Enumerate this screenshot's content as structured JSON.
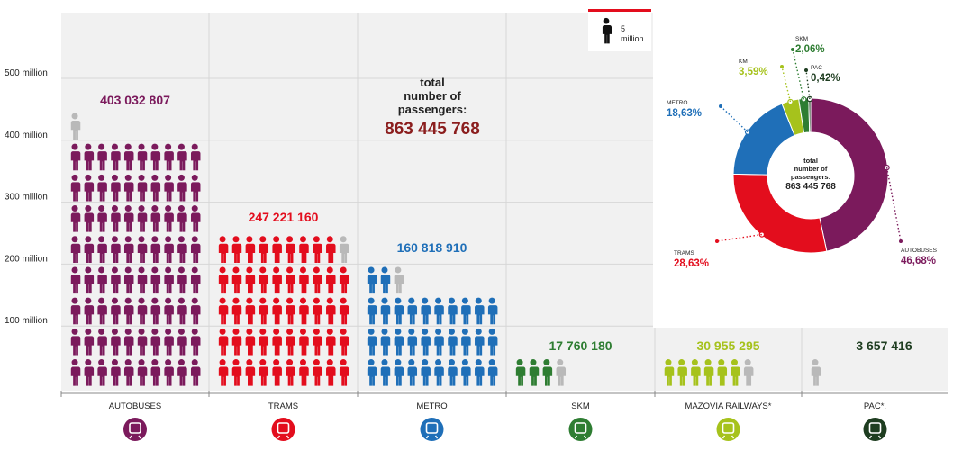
{
  "legend": {
    "unit_value": "5",
    "unit_label": "million"
  },
  "center_total": {
    "line1": "total",
    "line2": "number of",
    "line3": "passengers:",
    "value": "863 445 768"
  },
  "donut_total": {
    "line1": "total",
    "line2": "number of",
    "line3": "passengers:",
    "value": "863 445 768"
  },
  "colors": {
    "autobuses": "#7b1a5c",
    "trams": "#e30d1d",
    "metro": "#1f6fb8",
    "skm": "#2e7d32",
    "km": "#a6c21c",
    "pac": "#1e3d20",
    "gray": "#b9b9b9"
  },
  "chart_data": {
    "type": "bar",
    "title": "",
    "categories": [
      "AUTOBUSES",
      "TRAMS",
      "METRO",
      "SKM",
      "MAZOVIA RAILWAYS*",
      "PAC*."
    ],
    "values": [
      403032807,
      247221160,
      160818910,
      17760180,
      30955295,
      3657416
    ],
    "value_labels": [
      "403 032 807",
      "247 221 160",
      "160 818 910",
      "17 760 180",
      "30 955 295",
      "3 657 416"
    ],
    "y_ticks": [
      "100 million",
      "200 million",
      "300 million",
      "400 million",
      "500 million"
    ],
    "y_tick_values": [
      100000000,
      200000000,
      300000000,
      400000000,
      500000000
    ],
    "ylim": [
      0,
      600000000
    ],
    "grid": true
  },
  "donut": {
    "type": "pie",
    "slices": [
      {
        "label": "AUTOBUSES",
        "pct": "46,68%",
        "value": 46.68
      },
      {
        "label": "TRAMS",
        "pct": "28,63%",
        "value": 28.63
      },
      {
        "label": "METRO",
        "pct": "18,63%",
        "value": 18.63
      },
      {
        "label": "KM",
        "pct": "3,59%",
        "value": 3.59
      },
      {
        "label": "SKM",
        "pct": "2,06%",
        "value": 2.06
      },
      {
        "label": "PAC",
        "pct": "0,42%",
        "value": 0.42
      }
    ]
  }
}
